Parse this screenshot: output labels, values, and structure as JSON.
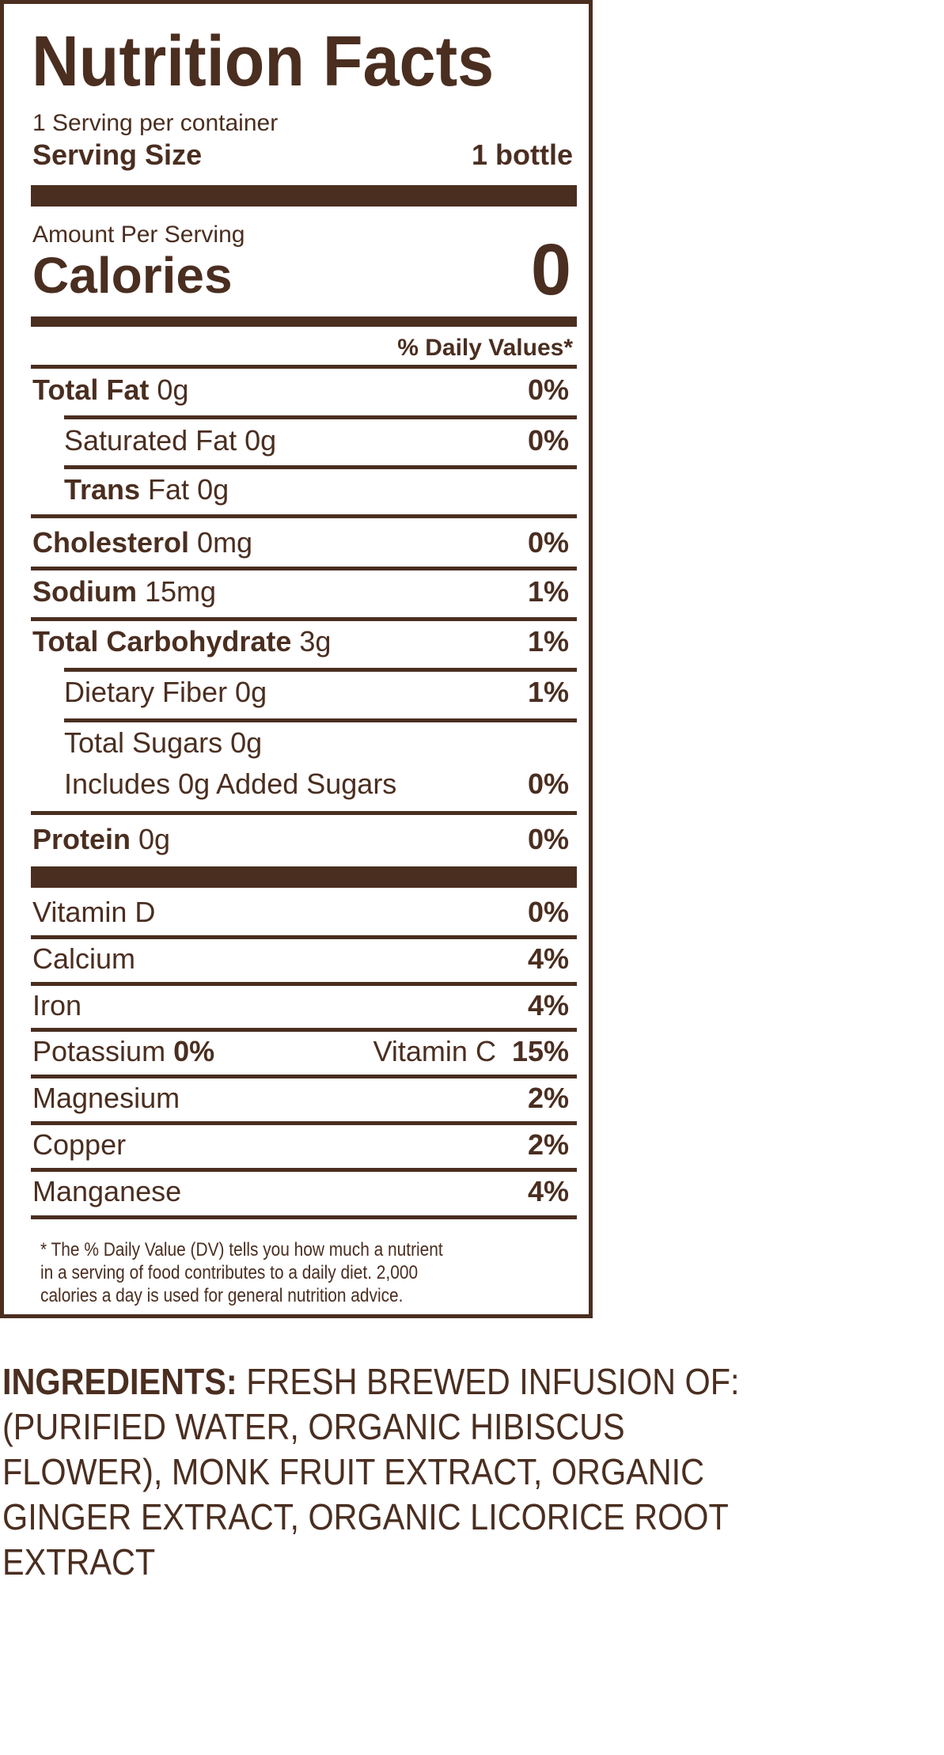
{
  "label": {
    "title": "Nutrition Facts",
    "servings_per_container": "1 Serving per container",
    "serving_size_label": "Serving Size",
    "serving_size_value": "1 bottle",
    "amount_per_serving": "Amount Per Serving",
    "calories_label": "Calories",
    "calories_value": "0",
    "daily_values_header": "% Daily Values*"
  },
  "nutrients": {
    "total_fat": {
      "name": "Total Fat",
      "amount": " 0g",
      "dv": "0%"
    },
    "saturated_fat": {
      "name": "Saturated Fat 0g",
      "dv": "0%"
    },
    "trans_fat": {
      "name": "Trans",
      "amount": " Fat 0g"
    },
    "cholesterol": {
      "name": "Cholesterol",
      "amount": " 0mg",
      "dv": "0%"
    },
    "sodium": {
      "name": "Sodium",
      "amount": " 15mg",
      "dv": "1%"
    },
    "total_carbohydrate": {
      "name": "Total Carbohydrate",
      "amount": " 3g",
      "dv": "1%"
    },
    "dietary_fiber": {
      "name": "Dietary Fiber  0g",
      "dv": "1%"
    },
    "total_sugars": {
      "name": "Total Sugars  0g"
    },
    "added_sugars": {
      "name": "Includes 0g Added Sugars",
      "dv": "0%"
    },
    "protein": {
      "name": "Protein",
      "amount": " 0g",
      "dv": "0%"
    }
  },
  "vitamins": {
    "vitamin_d": {
      "name": "Vitamin D",
      "dv": "0%"
    },
    "calcium": {
      "name": "Calcium",
      "dv": "4%"
    },
    "iron": {
      "name": "Iron",
      "dv": "4%"
    },
    "potassium": {
      "name": "Potassium",
      "dv": "0%"
    },
    "vitamin_c": {
      "name": "Vitamin C",
      "dv": "15%"
    },
    "magnesium": {
      "name": "Magnesium",
      "dv": "2%"
    },
    "copper": {
      "name": "Copper",
      "dv": "2%"
    },
    "manganese": {
      "name": "Manganese",
      "dv": "4%"
    }
  },
  "footnote": {
    "line1": "* The % Daily Value (DV) tells you how much a nutrient",
    "line2": "in a serving of food contributes to a daily diet. 2,000",
    "line3": "calories a day is used for general nutrition advice."
  },
  "ingredients": {
    "label": "INGREDIENTS:",
    "line1": " FRESH BREWED INFUSION OF:",
    "line2": "(PURIFIED WATER, ORGANIC HIBISCUS",
    "line3": "FLOWER), MONK FRUIT EXTRACT, ORGANIC",
    "line4": "GINGER EXTRACT, ORGANIC LICORICE ROOT",
    "line5": "EXTRACT"
  },
  "colors": {
    "ink": "#4a2e20",
    "background": "#ffffff"
  }
}
